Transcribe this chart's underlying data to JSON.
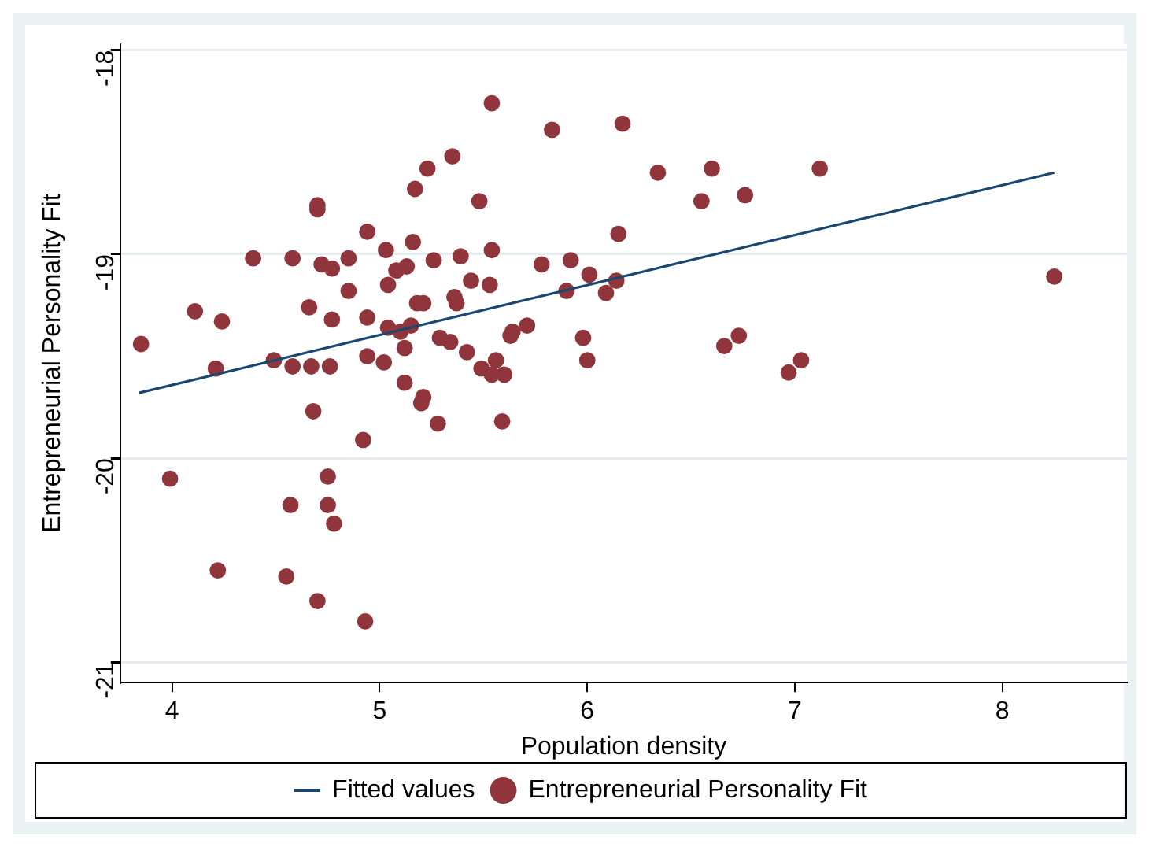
{
  "chart_data": {
    "type": "scatter",
    "xlabel": "Population density",
    "ylabel": "Entrepreneurial Personality Fit",
    "xlim": [
      3.75,
      8.6
    ],
    "ylim": [
      -21.1,
      -17.97
    ],
    "xticks": [
      4,
      5,
      6,
      7,
      8
    ],
    "yticks": [
      -21,
      -20,
      -19,
      -18
    ],
    "grid": "y",
    "legend": "bottom",
    "series": [
      {
        "name": "Fitted values",
        "type": "line",
        "color": "#1a476f",
        "x": [
          3.84,
          8.25
        ],
        "values": [
          -19.68,
          -18.6
        ]
      },
      {
        "name": "Entrepreneurial Personality Fit",
        "marker": "circle",
        "color": "#90353b",
        "x": [
          3.85,
          4.11,
          4.24,
          4.21,
          3.99,
          4.22,
          4.39,
          4.58,
          4.49,
          4.58,
          4.55,
          4.57,
          4.66,
          4.7,
          4.7,
          4.72,
          4.77,
          4.67,
          4.76,
          4.68,
          4.77,
          4.75,
          4.75,
          4.78,
          4.7,
          4.85,
          4.85,
          4.93,
          4.92,
          4.94,
          4.94,
          4.94,
          5.02,
          5.03,
          5.04,
          5.04,
          5.12,
          5.12,
          5.08,
          5.13,
          5.1,
          5.15,
          5.16,
          5.17,
          5.23,
          5.35,
          5.18,
          5.21,
          5.26,
          5.21,
          5.2,
          5.28,
          5.29,
          5.34,
          5.36,
          5.37,
          5.39,
          5.54,
          5.83,
          6.17,
          5.48,
          6.34,
          6.6,
          7.12,
          6.55,
          6.76,
          6.15,
          5.54,
          5.78,
          5.92,
          5.44,
          5.53,
          6.01,
          5.9,
          6.14,
          6.09,
          5.42,
          5.71,
          5.64,
          5.63,
          5.49,
          5.56,
          5.54,
          5.6,
          5.98,
          6.0,
          6.66,
          6.73,
          6.97,
          7.03,
          5.59,
          8.25
        ],
        "values": [
          -19.44,
          -19.28,
          -19.33,
          -19.56,
          -20.1,
          -20.55,
          -19.02,
          -19.02,
          -19.52,
          -19.55,
          -20.58,
          -20.23,
          -19.26,
          -18.76,
          -18.78,
          -19.05,
          -19.07,
          -19.55,
          -19.55,
          -19.77,
          -19.32,
          -20.09,
          -20.23,
          -20.32,
          -20.7,
          -19.02,
          -19.18,
          -20.8,
          -19.91,
          -18.89,
          -19.31,
          -19.5,
          -19.53,
          -18.98,
          -19.15,
          -19.36,
          -19.46,
          -19.63,
          -19.08,
          -19.06,
          -19.38,
          -19.35,
          -18.94,
          -18.68,
          -18.58,
          -18.52,
          -19.24,
          -19.24,
          -19.03,
          -19.7,
          -19.73,
          -19.83,
          -19.41,
          -19.43,
          -19.21,
          -19.24,
          -19.01,
          -18.26,
          -18.39,
          -18.36,
          -18.74,
          -18.6,
          -18.58,
          -18.58,
          -18.74,
          -18.71,
          -18.9,
          -18.98,
          -19.05,
          -19.03,
          -19.13,
          -19.15,
          -19.1,
          -19.18,
          -19.13,
          -19.19,
          -19.48,
          -19.35,
          -19.38,
          -19.4,
          -19.56,
          -19.52,
          -19.59,
          -19.59,
          -19.41,
          -19.52,
          -19.45,
          -19.4,
          -19.58,
          -19.52,
          -19.82,
          -19.11
        ]
      }
    ]
  }
}
